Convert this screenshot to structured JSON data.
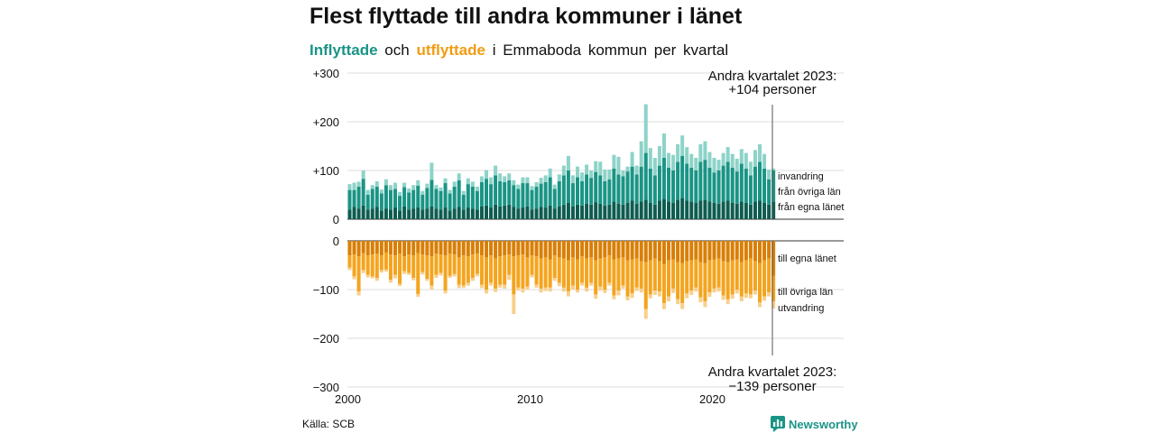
{
  "title": "Flest flyttade till andra kommuner i länet",
  "subtitle": {
    "part1": "Inflyttade",
    "part2": "och",
    "part3": "utflyttade",
    "part4": "i Emmaboda  kommun  per  kvartal"
  },
  "source": "Källa: SCB",
  "brand": "Newsworthy",
  "colors": {
    "in_egna": "#0e5c50",
    "in_ovriga": "#1a9485",
    "in_invandring": "#8dd3c8",
    "out_egna": "#d97f06",
    "out_ovriga": "#f4a41e",
    "out_utvandring": "#f8cf8c",
    "inflow_text": "#1a9485",
    "outflow_text": "#f29b10"
  },
  "chart_data": {
    "type": "bar",
    "x_range": [
      2000,
      2023.5
    ],
    "x_ticks": [
      "2000",
      "2010",
      "2020"
    ],
    "top_panel": {
      "y_ticks": [
        "+300",
        "+200",
        "+100",
        "0"
      ],
      "ylim": [
        0,
        300
      ],
      "series_names": [
        "från egna länet",
        "från övriga län",
        "invandring"
      ],
      "egna": [
        20,
        25,
        22,
        28,
        20,
        22,
        25,
        18,
        22,
        20,
        24,
        18,
        26,
        20,
        22,
        24,
        20,
        22,
        26,
        22,
        20,
        24,
        18,
        22,
        25,
        20,
        24,
        22,
        20,
        26,
        28,
        24,
        30,
        26,
        28,
        30,
        25,
        22,
        24,
        26,
        20,
        22,
        25,
        24,
        28,
        22,
        26,
        30,
        34,
        26,
        30,
        28,
        32,
        30,
        35,
        32,
        28,
        30,
        36,
        32,
        30,
        34,
        38,
        32,
        36,
        40,
        34,
        30,
        38,
        42,
        36,
        34,
        40,
        44,
        38,
        36,
        34,
        38,
        40,
        36,
        34,
        32,
        36,
        38,
        34,
        32,
        36,
        34,
        30,
        36,
        38,
        34,
        30,
        36
      ],
      "ovriga": [
        40,
        35,
        45,
        55,
        30,
        40,
        42,
        35,
        48,
        40,
        38,
        30,
        40,
        35,
        38,
        45,
        30,
        42,
        55,
        40,
        38,
        50,
        35,
        45,
        55,
        30,
        48,
        45,
        38,
        50,
        55,
        48,
        60,
        52,
        48,
        50,
        45,
        40,
        50,
        48,
        40,
        45,
        48,
        52,
        58,
        40,
        52,
        60,
        66,
        48,
        56,
        50,
        60,
        55,
        62,
        58,
        50,
        52,
        68,
        60,
        58,
        64,
        70,
        60,
        72,
        96,
        70,
        60,
        72,
        84,
        70,
        66,
        78,
        86,
        76,
        70,
        66,
        80,
        82,
        70,
        62,
        68,
        74,
        80,
        72,
        66,
        78,
        70,
        60,
        72,
        80,
        70,
        52,
        64
      ],
      "invandring": [
        12,
        15,
        10,
        17,
        10,
        8,
        11,
        8,
        12,
        10,
        13,
        8,
        9,
        8,
        10,
        11,
        8,
        9,
        35,
        8,
        7,
        10,
        7,
        10,
        14,
        8,
        12,
        10,
        9,
        12,
        18,
        14,
        20,
        16,
        12,
        14,
        10,
        9,
        12,
        12,
        8,
        9,
        12,
        14,
        18,
        9,
        14,
        20,
        30,
        16,
        22,
        18,
        20,
        15,
        22,
        28,
        24,
        20,
        28,
        36,
        12,
        10,
        30,
        18,
        52,
        100,
        42,
        36,
        40,
        50,
        30,
        32,
        36,
        42,
        34,
        28,
        26,
        36,
        38,
        32,
        30,
        22,
        26,
        30,
        28,
        26,
        30,
        32,
        28,
        34,
        36,
        30,
        20,
        4
      ]
    },
    "bottom_panel": {
      "y_ticks": [
        "0",
        "−100",
        "−200",
        "−300"
      ],
      "ylim": [
        -300,
        0
      ],
      "series_names": [
        "till egna länet",
        "till övriga län",
        "utvandring"
      ],
      "egna": [
        -30,
        -28,
        -32,
        -25,
        -30,
        -28,
        -26,
        -30,
        -24,
        -28,
        -30,
        -26,
        -32,
        -28,
        -30,
        -25,
        -28,
        -30,
        -32,
        -26,
        -28,
        -30,
        -26,
        -28,
        -34,
        -30,
        -32,
        -28,
        -26,
        -30,
        -34,
        -30,
        -36,
        -32,
        -30,
        -28,
        -32,
        -30,
        -28,
        -34,
        -30,
        -32,
        -36,
        -34,
        -38,
        -30,
        -34,
        -36,
        -40,
        -34,
        -38,
        -32,
        -36,
        -34,
        -40,
        -36,
        -34,
        -30,
        -38,
        -36,
        -34,
        -40,
        -38,
        -36,
        -42,
        -44,
        -40,
        -36,
        -42,
        -48,
        -40,
        -38,
        -44,
        -46,
        -42,
        -40,
        -38,
        -44,
        -46,
        -40,
        -38,
        -36,
        -42,
        -44,
        -40,
        -38,
        -44,
        -40,
        -36,
        -42,
        -46,
        -40,
        -36,
        -72
      ],
      "ovriga": [
        -25,
        -45,
        -72,
        -35,
        -40,
        -45,
        -50,
        -30,
        -35,
        -52,
        -40,
        -62,
        -30,
        -38,
        -46,
        -84,
        -36,
        -48,
        -60,
        -44,
        -38,
        -72,
        -46,
        -40,
        -56,
        -62,
        -54,
        -48,
        -42,
        -60,
        -66,
        -56,
        -62,
        -58,
        -60,
        -42,
        -78,
        -66,
        -70,
        -60,
        -40,
        -58,
        -62,
        -62,
        -58,
        -46,
        -52,
        -60,
        -64,
        -58,
        -62,
        -54,
        -60,
        -52,
        -70,
        -58,
        -66,
        -56,
        -74,
        -66,
        -58,
        -74,
        -70,
        -60,
        -56,
        -96,
        -70,
        -66,
        -62,
        -80,
        -74,
        -60,
        -76,
        -82,
        -66,
        -62,
        -58,
        -72,
        -78,
        -66,
        -60,
        -60,
        -70,
        -76,
        -70,
        -62,
        -70,
        -68,
        -74,
        -60,
        -80,
        -74,
        -70,
        -52
      ],
      "utvandring": [
        -5,
        -6,
        -8,
        -6,
        -5,
        -4,
        -6,
        -5,
        -4,
        -6,
        -7,
        -5,
        -6,
        -4,
        -5,
        -6,
        -5,
        -4,
        -8,
        -6,
        -5,
        -6,
        -4,
        -5,
        -7,
        -5,
        -6,
        -6,
        -5,
        -7,
        -8,
        -6,
        -7,
        -6,
        -8,
        -10,
        -40,
        -6,
        -8,
        -6,
        -5,
        -6,
        -8,
        -7,
        -8,
        -6,
        -7,
        -8,
        -10,
        -8,
        -6,
        -6,
        -8,
        -6,
        -9,
        -8,
        -7,
        -6,
        -8,
        -10,
        -6,
        -8,
        -9,
        -7,
        -8,
        -20,
        -8,
        -9,
        -10,
        -12,
        -10,
        -9,
        -10,
        -12,
        -10,
        -9,
        -8,
        -10,
        -12,
        -9,
        -8,
        -8,
        -9,
        -10,
        -9,
        -8,
        -10,
        -9,
        -8,
        -8,
        -10,
        -9,
        -8,
        -15
      ]
    },
    "annotation_top": {
      "line1": "Andra kvartalet 2023:",
      "line2": "+104 personer",
      "value": 104
    },
    "annotation_bottom": {
      "line1": "Andra kvartalet 2023:",
      "line2": "−139 personer",
      "value": -139
    },
    "grid": true,
    "legend_placement": "right, inline next to last bar"
  }
}
